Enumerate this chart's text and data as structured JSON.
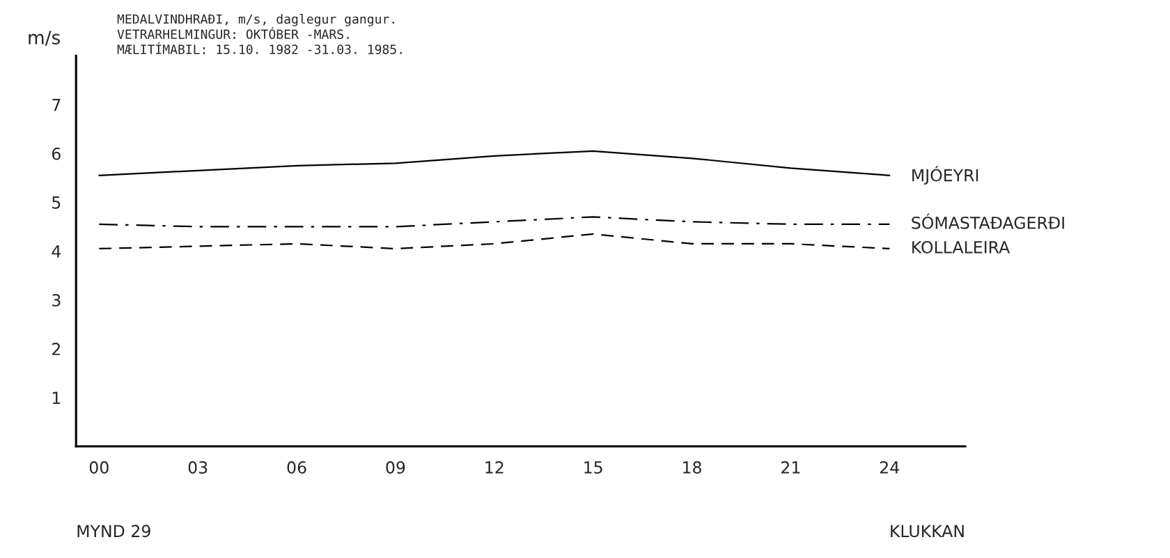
{
  "chart_data": {
    "type": "line",
    "title": "MEDALVINDHRAÐI, m/s, daglegur gangur.",
    "subtitle": "VETRARHELMINGUR: OKTÓBER -MARS.\nMÆLITÍMABIL: 15.10. 1982 -31.03. 1985.",
    "ylabel": "m/s",
    "xlabel": "KLUKKAN",
    "annotations": [
      "MYND 29"
    ],
    "x": [
      0,
      3,
      6,
      9,
      12,
      15,
      18,
      21,
      24
    ],
    "series": [
      {
        "name": "MJÓEYRI",
        "color": "#000000",
        "line_style": "solid",
        "values": [
          5.55,
          5.65,
          5.75,
          5.8,
          5.95,
          6.05,
          5.9,
          5.7,
          5.55
        ]
      },
      {
        "name": "SÓMASTAÐAGERÐI",
        "color": "#000000",
        "line_style": "dashdot",
        "values": [
          4.55,
          4.5,
          4.5,
          4.5,
          4.6,
          4.7,
          4.6,
          4.55,
          4.55
        ]
      },
      {
        "name": "KOLLALEIRA",
        "color": "#000000",
        "line_style": "dashed",
        "values": [
          4.05,
          4.1,
          4.15,
          4.05,
          4.15,
          4.35,
          4.15,
          4.15,
          4.05
        ]
      }
    ],
    "xlim": [
      -0.7,
      26.3
    ],
    "ylim": [
      0,
      8
    ],
    "xticks": [
      {
        "value": 0,
        "label": "00"
      },
      {
        "value": 3,
        "label": "03"
      },
      {
        "value": 6,
        "label": "06"
      },
      {
        "value": 9,
        "label": "09"
      },
      12,
      15,
      18,
      21,
      24
    ],
    "yticks": [
      1,
      2,
      3,
      4,
      5,
      6,
      7
    ],
    "grid": false,
    "legend": false,
    "marker": "none"
  }
}
